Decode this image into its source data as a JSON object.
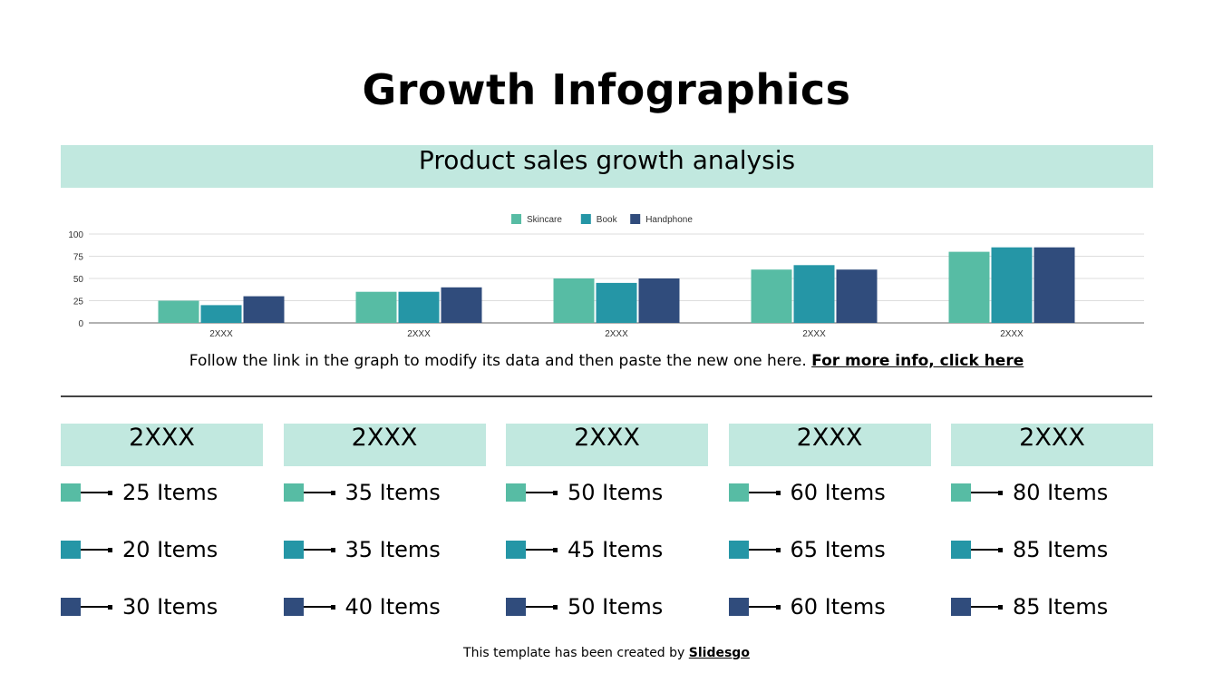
{
  "title": "Growth Infographics",
  "banner": "Product sales growth analysis",
  "colors": {
    "Skincare": "#57bca4",
    "Book": "#2596a6",
    "Handphone": "#304c7c",
    "banner": "#c1e8df"
  },
  "chart_data": {
    "type": "bar",
    "categories": [
      "2XXX",
      "2XXX",
      "2XXX",
      "2XXX",
      "2XXX"
    ],
    "series": [
      {
        "name": "Skincare",
        "values": [
          25,
          35,
          50,
          60,
          80
        ]
      },
      {
        "name": "Book",
        "values": [
          20,
          35,
          45,
          65,
          85
        ]
      },
      {
        "name": "Handphone",
        "values": [
          30,
          40,
          50,
          60,
          85
        ]
      }
    ],
    "ylim": [
      0,
      100
    ],
    "yticks": [
      "0",
      "25",
      "50",
      "75",
      "100"
    ],
    "grid": true,
    "legend": "top"
  },
  "note": {
    "text": "Follow the link in the graph to modify its data and then paste the new one here.",
    "link": "For more info, click here"
  },
  "columns": [
    {
      "year": "2XXX",
      "items": [
        "25 Items",
        "20 Items",
        "30 Items"
      ]
    },
    {
      "year": "2XXX",
      "items": [
        "35 Items",
        "35 Items",
        "40 Items"
      ]
    },
    {
      "year": "2XXX",
      "items": [
        "50 Items",
        "45 Items",
        "50 Items"
      ]
    },
    {
      "year": "2XXX",
      "items": [
        "60 Items",
        "65 Items",
        "60 Items"
      ]
    },
    {
      "year": "2XXX",
      "items": [
        "80 Items",
        "85 Items",
        "85 Items"
      ]
    }
  ],
  "footer": {
    "text": "This template has been created by",
    "brand": "Slidesgo"
  }
}
